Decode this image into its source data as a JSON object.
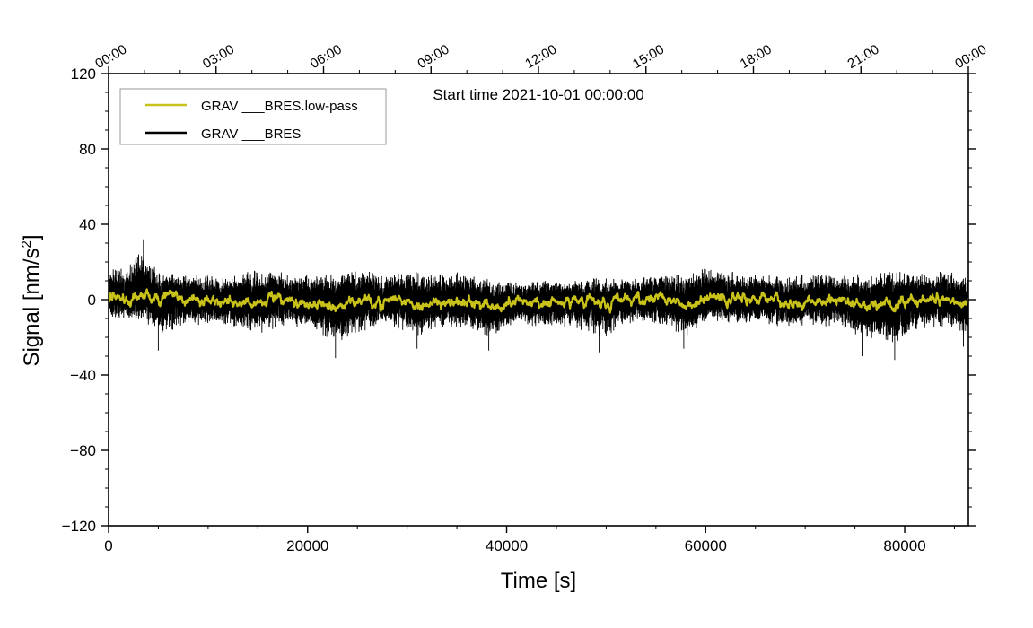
{
  "chart_data": {
    "type": "line",
    "title": "Start time 2021-10-01 00:00:00",
    "xlabel": "Time [s]",
    "ylabel_main": "Signal [nm/s",
    "ylabel_sup": "2",
    "ylabel_end": "]",
    "xlim": [
      0,
      86400
    ],
    "ylim": [
      -120,
      120
    ],
    "x_ticks": [
      0,
      20000,
      40000,
      60000,
      80000
    ],
    "x_tick_labels": [
      "0",
      "20000",
      "40000",
      "60000",
      "80000"
    ],
    "x_minor_step": 5000,
    "y_ticks": [
      -120,
      -80,
      -40,
      0,
      40,
      80,
      120
    ],
    "y_tick_labels": [
      "−120",
      "−80",
      "−40",
      "0",
      "40",
      "80",
      "120"
    ],
    "y_minor_step": 10,
    "top_axis": {
      "ticks_seconds": [
        0,
        10800,
        21600,
        32400,
        43200,
        54000,
        64800,
        75600,
        86400
      ],
      "labels": [
        "00:00",
        "03:00",
        "06:00",
        "09:00",
        "12:00",
        "15:00",
        "18:00",
        "21:00",
        "00:00"
      ]
    },
    "legend": {
      "position": "top-left",
      "entries": [
        "GRAV ___BRES.low-pass",
        "GRAV ___BRES"
      ]
    },
    "series": [
      {
        "name": "GRAV ___BRES",
        "color": "#000000",
        "description": "raw gravity residual, dense noisy trace roughly within ±15 nm/s², spikes to ~+32 and ~-32",
        "envelope_x": [
          0,
          2000,
          3500,
          5000,
          8000,
          12000,
          15000,
          18000,
          20000,
          23000,
          26000,
          28000,
          31000,
          34000,
          36000,
          38500,
          40000,
          44000,
          46000,
          49500,
          52000,
          55000,
          58000,
          60000,
          62000,
          65000,
          68000,
          70000,
          73000,
          76000,
          79000,
          81000,
          84000,
          86400
        ],
        "envelope_upper": [
          18,
          22,
          32,
          17,
          16,
          15,
          19,
          18,
          17,
          17,
          20,
          17,
          18,
          17,
          19,
          12,
          11,
          13,
          12,
          14,
          13,
          16,
          16,
          21,
          18,
          16,
          15,
          16,
          17,
          16,
          18,
          16,
          18,
          15
        ],
        "envelope_lower": [
          -12,
          -14,
          -16,
          -27,
          -18,
          -20,
          -24,
          -20,
          -20,
          -31,
          -22,
          -18,
          -26,
          -20,
          -22,
          -27,
          -20,
          -18,
          -20,
          -28,
          -17,
          -18,
          -26,
          -16,
          -18,
          -18,
          -20,
          -18,
          -20,
          -30,
          -32,
          -22,
          -20,
          -26
        ],
        "spikes": [
          {
            "x": 3500,
            "y": 32
          },
          {
            "x": 5000,
            "y": -27
          },
          {
            "x": 22800,
            "y": -31
          },
          {
            "x": 31000,
            "y": -26
          },
          {
            "x": 38200,
            "y": -27
          },
          {
            "x": 49300,
            "y": -28
          },
          {
            "x": 57800,
            "y": -26
          },
          {
            "x": 75800,
            "y": -30
          },
          {
            "x": 79000,
            "y": -32
          },
          {
            "x": 85900,
            "y": -25
          }
        ]
      },
      {
        "name": "GRAV ___BRES.low-pass",
        "color": "#c9c21a",
        "description": "low-pass filtered signal, oscillating roughly within ±8 nm/s² around 0"
      }
    ]
  }
}
